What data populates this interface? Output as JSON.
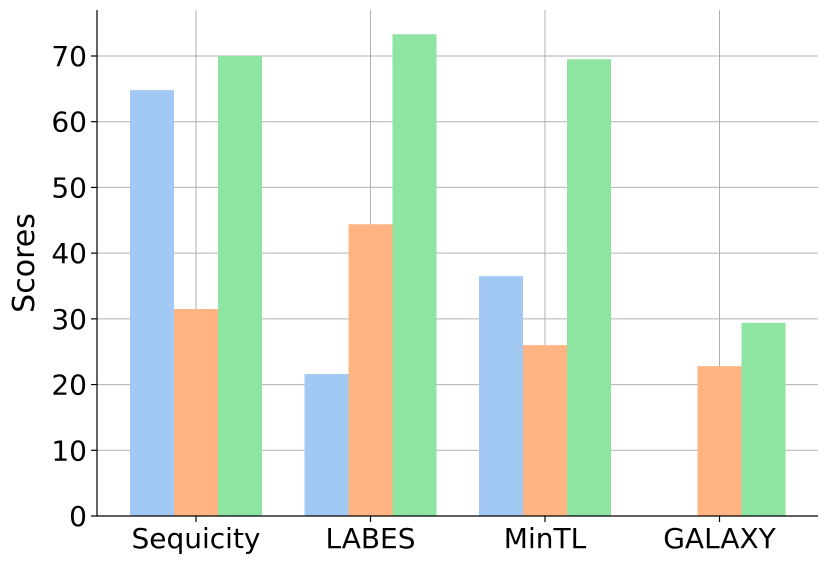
{
  "chart_data": {
    "type": "bar",
    "title": "",
    "xlabel": "",
    "ylabel": "Scores",
    "categories": [
      "Sequicity",
      "LABES",
      "MinTL",
      "GALAXY"
    ],
    "series": [
      {
        "values": [
          64.8,
          21.6,
          36.5,
          null
        ],
        "color": "#a1c9f4"
      },
      {
        "values": [
          31.5,
          44.4,
          26.0,
          22.8
        ],
        "color": "#ffb482"
      },
      {
        "values": [
          70.0,
          73.3,
          69.5,
          29.4
        ],
        "color": "#8de5a1"
      }
    ],
    "ylim": [
      0,
      77
    ],
    "yticks": [
      0,
      10,
      20,
      30,
      40,
      50,
      60,
      70
    ],
    "grid": true,
    "legend": "none"
  }
}
